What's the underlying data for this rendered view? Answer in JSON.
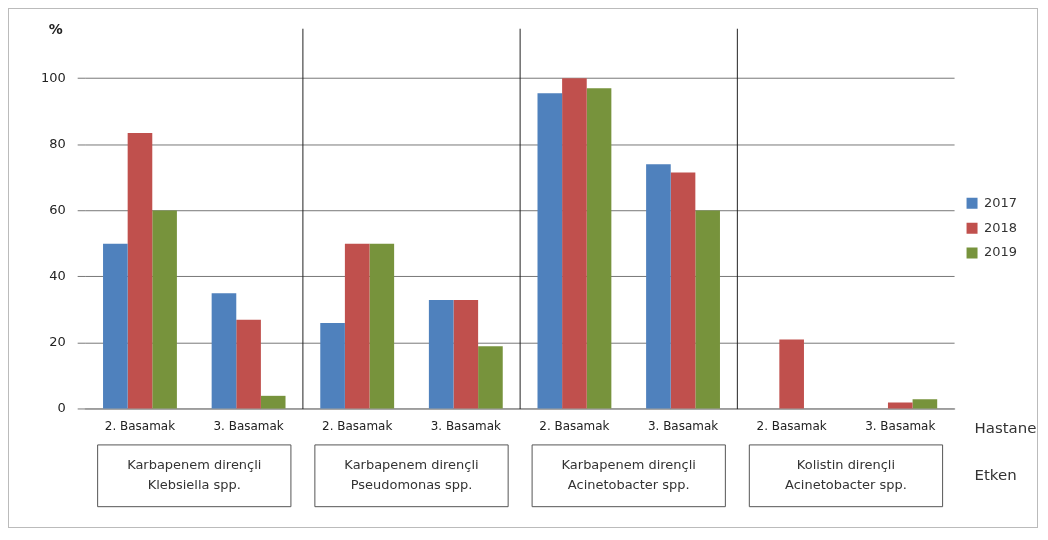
{
  "chart_data": {
    "type": "bar",
    "ylabel": "%",
    "categories": [
      "2. Basamak",
      "3. Basamak",
      "2. Basamak",
      "3. Basamak",
      "2. Basamak",
      "3. Basamak",
      "2. Basamak",
      "3. Basamak"
    ],
    "series": [
      {
        "name": "2017",
        "color": "#4f81bd",
        "values": [
          50,
          35,
          26,
          33,
          95.5,
          74,
          0,
          0
        ]
      },
      {
        "name": "2018",
        "color": "#c0504d",
        "values": [
          83.5,
          27,
          50,
          33,
          100,
          71.5,
          21,
          2
        ]
      },
      {
        "name": "2019",
        "color": "#77933c",
        "values": [
          60,
          4,
          50,
          19,
          97,
          60,
          0,
          3
        ]
      }
    ],
    "ylim": [
      0,
      115
    ],
    "yticks": [
      0,
      20,
      40,
      60,
      80,
      100
    ],
    "grid": "y",
    "legend": "right",
    "annotations": [
      "Karbapenem dirençli Klebsiella spp.",
      "Karbapenem dirençli Pseudomonas spp.",
      "Karbapenem dirençli Acinetobacter spp.",
      "Kolistin dirençli Acinetobacter spp.",
      "Hastane",
      "Etken"
    ]
  }
}
